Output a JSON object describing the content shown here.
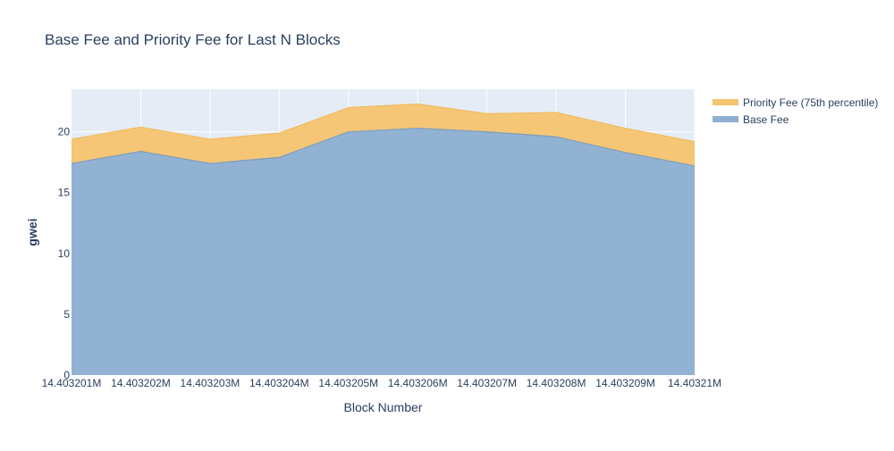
{
  "chart_data": {
    "type": "area",
    "title": "Base Fee and Priority Fee for Last N Blocks",
    "xlabel": "Block Number",
    "ylabel": "gwei",
    "x": [
      14403201,
      14403202,
      14403203,
      14403204,
      14403205,
      14403206,
      14403207,
      14403208,
      14403209,
      14403210
    ],
    "x_tick_labels": [
      "14.403201M",
      "14.403202M",
      "14.403203M",
      "14.403204M",
      "14.403205M",
      "14.403206M",
      "14.403207M",
      "14.403208M",
      "14.403209M",
      "14.40321M"
    ],
    "xlim": [
      14403201,
      14403210
    ],
    "ylim": [
      0,
      23.5
    ],
    "y_ticks": [
      0,
      5,
      10,
      15,
      20
    ],
    "stacked": true,
    "grid": true,
    "legend_position": "top-right",
    "series": [
      {
        "name": "Base Fee",
        "color": "#8FB0D2",
        "values": [
          17.4,
          18.4,
          17.4,
          17.9,
          20.0,
          20.3,
          20.0,
          19.6,
          18.3,
          17.2
        ]
      },
      {
        "name": "Priority Fee (75th percentile)",
        "color": "#F4C46F",
        "values": [
          2.0,
          2.0,
          2.0,
          2.0,
          2.0,
          2.0,
          1.5,
          2.0,
          2.0,
          2.0
        ]
      }
    ],
    "legend_order": [
      1,
      0
    ],
    "colors": {
      "plot_background": "#E5ECF6",
      "grid": "#ffffff",
      "text": "#2A3F5F"
    }
  }
}
